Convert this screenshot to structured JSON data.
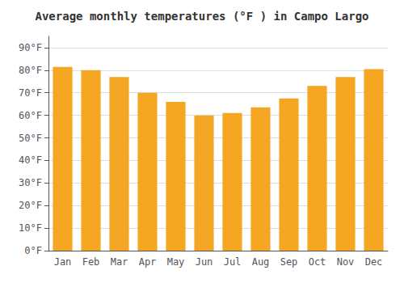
{
  "chart_data": {
    "type": "bar",
    "title": "Average monthly temperatures (°F ) in Campo Largo",
    "categories": [
      "Jan",
      "Feb",
      "Mar",
      "Apr",
      "May",
      "Jun",
      "Jul",
      "Aug",
      "Sep",
      "Oct",
      "Nov",
      "Dec"
    ],
    "values": [
      81.5,
      80.0,
      77.0,
      70.0,
      66.0,
      60.0,
      61.0,
      63.5,
      67.5,
      73.0,
      77.0,
      80.5
    ],
    "color": "#F5A623",
    "ylim": [
      0,
      95
    ],
    "yticks": [
      {
        "value": 0,
        "label": "0°F"
      },
      {
        "value": 10,
        "label": "10°F"
      },
      {
        "value": 20,
        "label": "20°F"
      },
      {
        "value": 30,
        "label": "30°F"
      },
      {
        "value": 40,
        "label": "40°F"
      },
      {
        "value": 50,
        "label": "50°F"
      },
      {
        "value": 60,
        "label": "60°F"
      },
      {
        "value": 70,
        "label": "70°F"
      },
      {
        "value": 80,
        "label": "80°F"
      },
      {
        "value": 90,
        "label": "90°F"
      }
    ],
    "grid": true
  }
}
